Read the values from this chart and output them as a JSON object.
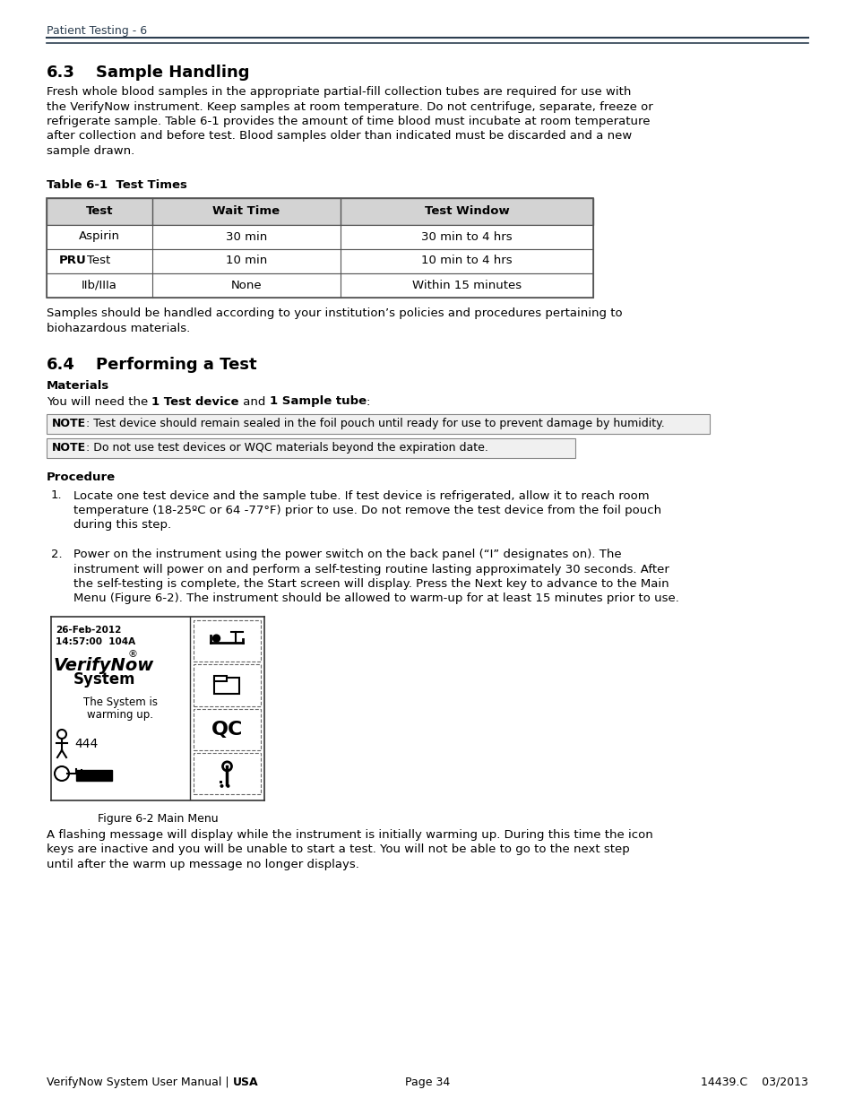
{
  "header_text": "Patient Testing - 6",
  "section_63_num": "6.3",
  "section_63_title": "Sample Handling",
  "section_63_body_lines": [
    "Fresh whole blood samples in the appropriate partial-fill collection tubes are required for use with",
    "the VerifyNow instrument. Keep samples at room temperature. Do not centrifuge, separate, freeze or",
    "refrigerate sample. Table 6-1 provides the amount of time blood must incubate at room temperature",
    "after collection and before test. Blood samples older than indicated must be discarded and a new",
    "sample drawn."
  ],
  "table_title": "Table 6-1  Test Times",
  "table_headers": [
    "Test",
    "Wait Time",
    "Test Window"
  ],
  "table_rows": [
    [
      "Aspirin",
      "30 min",
      "30 min to 4 hrs"
    ],
    [
      "PRUTest",
      "10 min",
      "10 min to 4 hrs"
    ],
    [
      "IIb/IIIa",
      "None",
      "Within 15 minutes"
    ]
  ],
  "after_table_lines": [
    "Samples should be handled according to your institution’s policies and procedures pertaining to",
    "biohazardous materials."
  ],
  "section_64_num": "6.4",
  "section_64_title": "Performing a Test",
  "materials_heading": "Materials",
  "note1_text": ": Test device should remain sealed in the foil pouch until ready for use to prevent damage by humidity.",
  "note2_text": ": Do not use test devices or WQC materials beyond the expiration date.",
  "procedure_heading": "Procedure",
  "step1_lines": [
    "Locate one test device and the sample tube. If test device is refrigerated, allow it to reach room",
    "temperature (18-25ºC or 64 -77°F) prior to use. Do not remove the test device from the foil pouch",
    "during this step."
  ],
  "step2_lines": [
    "Power on the instrument using the power switch on the back panel (“I” designates on). The",
    "instrument will power on and perform a self-testing routine lasting approximately 30 seconds. After",
    "the self-testing is complete, the Start screen will display. Press the Next key to advance to the Main",
    "Menu (Figure 6-2). The instrument should be allowed to warm-up for at least 15 minutes prior to use."
  ],
  "figure_caption": "Figure 6-2 Main Menu",
  "after_figure_lines": [
    "A flashing message will display while the instrument is initially warming up. During this time the icon",
    "keys are inactive and you will be unable to start a test. You will not be able to go to the next step",
    "until after the warm up message no longer displays."
  ],
  "footer_left": "VerifyNow System User Manual | ",
  "footer_left_bold": "USA",
  "footer_center": "Page 34",
  "footer_right": "14439.C    03/2013",
  "dark_color": "#2c3e50",
  "table_header_bg": "#d3d3d3",
  "table_border_color": "#555555",
  "note_bg": "#f0f0f0"
}
